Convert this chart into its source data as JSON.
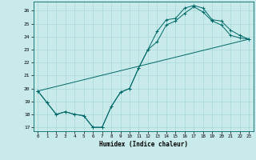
{
  "xlabel": "Humidex (Indice chaleur)",
  "bg_color": "#c8eaea",
  "grid_color": "#a8d8d8",
  "line_color": "#006868",
  "xlim": [
    -0.5,
    23.5
  ],
  "ylim": [
    16.7,
    26.7
  ],
  "yticks": [
    17,
    18,
    19,
    20,
    21,
    22,
    23,
    24,
    25,
    26
  ],
  "xticks": [
    0,
    1,
    2,
    3,
    4,
    5,
    6,
    7,
    8,
    9,
    10,
    11,
    12,
    13,
    14,
    15,
    16,
    17,
    18,
    19,
    20,
    21,
    22,
    23
  ],
  "line1_x": [
    0,
    1,
    2,
    3,
    4,
    5,
    6,
    7,
    8,
    9,
    10,
    11,
    12,
    13,
    14,
    15,
    16,
    17,
    18,
    19,
    20,
    21,
    22,
    23
  ],
  "line1_y": [
    19.8,
    18.9,
    18.0,
    18.2,
    18.0,
    17.9,
    17.0,
    17.0,
    18.6,
    19.7,
    20.0,
    21.6,
    23.0,
    23.6,
    24.9,
    25.2,
    25.8,
    26.3,
    25.9,
    25.2,
    24.9,
    24.1,
    23.9,
    23.8
  ],
  "line2_x": [
    0,
    1,
    2,
    3,
    4,
    5,
    6,
    7,
    8,
    9,
    10,
    11,
    12,
    13,
    14,
    15,
    16,
    17,
    18,
    19,
    20,
    21,
    22,
    23
  ],
  "line2_y": [
    19.8,
    18.9,
    18.0,
    18.2,
    18.0,
    17.9,
    17.0,
    17.0,
    18.6,
    19.7,
    20.0,
    21.6,
    23.0,
    24.4,
    25.3,
    25.4,
    26.2,
    26.4,
    26.2,
    25.3,
    25.2,
    24.5,
    24.1,
    23.8
  ],
  "line3_x": [
    0,
    23
  ],
  "line3_y": [
    19.8,
    23.8
  ]
}
